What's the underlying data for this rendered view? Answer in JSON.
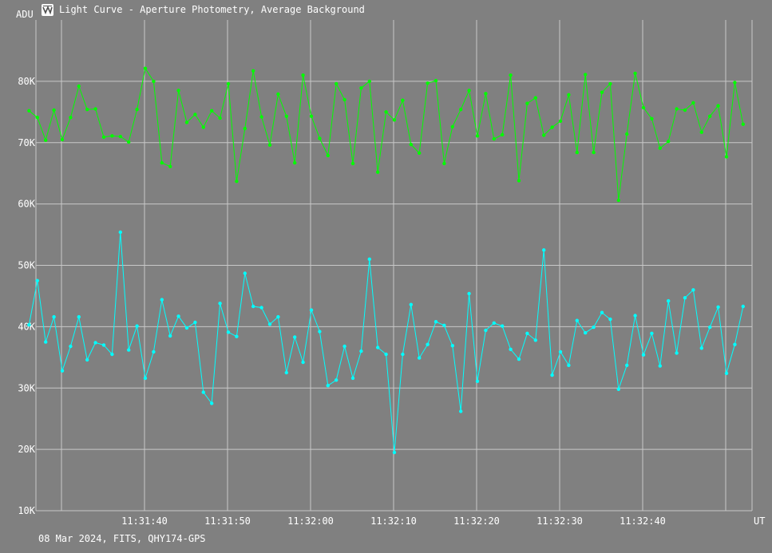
{
  "window": {
    "title": "Light Curve - Aperture Photometry, Average Background",
    "app_icon": "light-curve-app-icon"
  },
  "footer": {
    "info": "08 Mar 2024, FITS, QHY174-GPS"
  },
  "chart_data": {
    "type": "line",
    "title": "Light Curve - Aperture Photometry, Average Background",
    "ylabel": "ADU",
    "xlabel": "UT",
    "ylim": [
      10000,
      90000
    ],
    "y_ticks": [
      10000,
      20000,
      30000,
      40000,
      50000,
      60000,
      70000,
      80000
    ],
    "y_tick_labels": [
      "10K",
      "20K",
      "30K",
      "40K",
      "50K",
      "60K",
      "70K",
      "80K"
    ],
    "x_tick_labels": [
      "11:31:40",
      "11:31:50",
      "11:32:00",
      "11:32:10",
      "11:32:20",
      "11:32:30",
      "11:32:40"
    ],
    "x_tick_seconds": [
      40,
      50,
      60,
      70,
      80,
      90,
      100
    ],
    "x_start_seconds": 26.1,
    "x_step_seconds": 1.0,
    "grid": true,
    "colors": {
      "background": "#808080",
      "grid": "#c8c8c8",
      "text": "#ffffff"
    },
    "series": [
      {
        "color": "#00ff00",
        "values": [
          75200,
          74100,
          70400,
          75300,
          70500,
          74100,
          79200,
          75400,
          75500,
          70900,
          71100,
          71000,
          70100,
          75400,
          82100,
          80000,
          66700,
          66100,
          78500,
          73300,
          74600,
          72500,
          75200,
          74000,
          79600,
          63700,
          72300,
          81700,
          74200,
          69600,
          77900,
          74300,
          66700,
          81000,
          74300,
          70700,
          67900,
          79600,
          77000,
          66600,
          78900,
          80000,
          65200,
          75000,
          73700,
          76900,
          69700,
          68300,
          79700,
          80100,
          66600,
          72600,
          75400,
          78500,
          71100,
          78000,
          70600,
          71300,
          81000,
          63800,
          76400,
          77300,
          71200,
          72500,
          73500,
          77800,
          68400,
          81100,
          68400,
          78200,
          79600,
          60600,
          71400,
          81300,
          75700,
          73900,
          69100,
          70200,
          75500,
          75300,
          76500,
          71700,
          74300,
          76000,
          67700,
          79800,
          73000
        ]
      },
      {
        "color": "#00ffff",
        "values": [
          40300,
          47500,
          37500,
          41600,
          32800,
          36800,
          41600,
          34600,
          37400,
          37000,
          35500,
          55400,
          36200,
          40100,
          31600,
          35900,
          44400,
          38500,
          41700,
          39800,
          40700,
          29300,
          27500,
          43800,
          39100,
          38400,
          48700,
          43300,
          43100,
          40400,
          41600,
          32500,
          38300,
          34200,
          42700,
          39200,
          30400,
          31300,
          36800,
          31600,
          36000,
          51000,
          36600,
          35500,
          19500,
          35500,
          43600,
          34900,
          37100,
          40800,
          40200,
          36900,
          26200,
          45400,
          31100,
          39400,
          40600,
          40100,
          36300,
          34700,
          38900,
          37800,
          52500,
          32100,
          35900,
          33700,
          41000,
          39000,
          39900,
          42300,
          41200,
          29800,
          33700,
          41800,
          35400,
          38900,
          33600,
          44200,
          35700,
          44700,
          46000,
          36500,
          39900,
          43200,
          32400,
          37100,
          43300
        ]
      }
    ]
  }
}
